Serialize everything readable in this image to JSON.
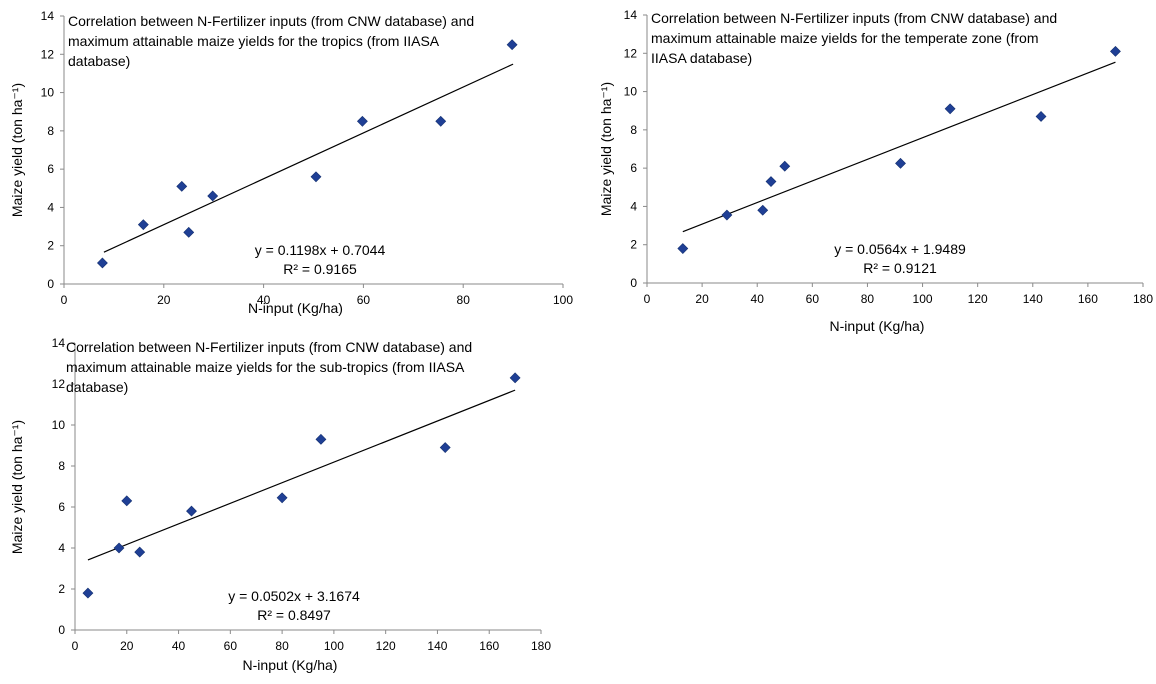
{
  "chart_data": [
    {
      "type": "scatter",
      "title_lines": [
        "Correlation between N-Fertilizer inputs (from CNW database) and",
        "maximum attainable maize yields for the tropics (from IIASA",
        "database)"
      ],
      "xlabel": "N-input (Kg/ha)",
      "ylabel": "Maize yield (ton ha⁻¹)",
      "xlim": [
        0,
        100
      ],
      "ylim": [
        0,
        14
      ],
      "xticks": [
        0,
        20,
        40,
        60,
        80,
        100
      ],
      "yticks": [
        0,
        2,
        4,
        6,
        8,
        10,
        12,
        14
      ],
      "grid": false,
      "marker_color": "#1F3F95",
      "trendline": {
        "slope": 0.1198,
        "intercept": 0.7044,
        "x_range": [
          8,
          90
        ]
      },
      "equation": "y = 0.1198x + 0.7044",
      "r2": "R² = 0.9165",
      "points": [
        {
          "x": 7.7,
          "y": 1.1
        },
        {
          "x": 15.9,
          "y": 3.1
        },
        {
          "x": 23.6,
          "y": 5.1
        },
        {
          "x": 25.0,
          "y": 2.7
        },
        {
          "x": 29.8,
          "y": 4.6
        },
        {
          "x": 50.5,
          "y": 5.6
        },
        {
          "x": 59.8,
          "y": 8.5
        },
        {
          "x": 75.5,
          "y": 8.5
        },
        {
          "x": 89.8,
          "y": 12.5
        }
      ]
    },
    {
      "type": "scatter",
      "title_lines": [
        "Correlation between N-Fertilizer inputs (from CNW database) and",
        "maximum attainable maize yields for the temperate zone (from",
        "IIASA database)"
      ],
      "xlabel": "N-input (Kg/ha)",
      "ylabel": "Maize yield (ton ha⁻¹)",
      "xlim": [
        0,
        180
      ],
      "ylim": [
        0,
        14
      ],
      "xticks": [
        0,
        20,
        40,
        60,
        80,
        100,
        120,
        140,
        160,
        180
      ],
      "yticks": [
        0,
        2,
        4,
        6,
        8,
        10,
        12,
        14
      ],
      "grid": false,
      "marker_color": "#1F3F95",
      "trendline": {
        "slope": 0.0564,
        "intercept": 1.9489,
        "x_range": [
          13,
          170
        ]
      },
      "equation": "y = 0.0564x + 1.9489",
      "r2": "R² = 0.9121",
      "points": [
        {
          "x": 13,
          "y": 1.8
        },
        {
          "x": 29,
          "y": 3.55
        },
        {
          "x": 42,
          "y": 3.8
        },
        {
          "x": 45,
          "y": 5.3
        },
        {
          "x": 50,
          "y": 6.1
        },
        {
          "x": 92,
          "y": 6.25
        },
        {
          "x": 110,
          "y": 9.1
        },
        {
          "x": 143,
          "y": 8.7
        },
        {
          "x": 170,
          "y": 12.1
        }
      ]
    },
    {
      "type": "scatter",
      "title_lines": [
        "Correlation between N-Fertilizer inputs (from CNW database) and",
        "maximum attainable maize yields for the sub-tropics (from IIASA",
        "database)"
      ],
      "xlabel": "N-input (Kg/ha)",
      "ylabel": "Maize yield (ton ha⁻¹)",
      "xlim": [
        0,
        180
      ],
      "ylim": [
        0,
        14
      ],
      "xticks": [
        0,
        20,
        40,
        60,
        80,
        100,
        120,
        140,
        160,
        180
      ],
      "yticks": [
        0,
        2,
        4,
        6,
        8,
        10,
        12,
        14
      ],
      "grid": false,
      "marker_color": "#1F3F95",
      "trendline": {
        "slope": 0.0502,
        "intercept": 3.1674,
        "x_range": [
          5,
          170
        ]
      },
      "equation": "y = 0.0502x + 3.1674",
      "r2": "R² = 0.8497",
      "points": [
        {
          "x": 5,
          "y": 1.8
        },
        {
          "x": 17,
          "y": 4.0
        },
        {
          "x": 20,
          "y": 6.3
        },
        {
          "x": 25,
          "y": 3.8
        },
        {
          "x": 45,
          "y": 5.8
        },
        {
          "x": 80,
          "y": 6.45
        },
        {
          "x": 95,
          "y": 9.3
        },
        {
          "x": 143,
          "y": 8.9
        },
        {
          "x": 170,
          "y": 12.3
        }
      ]
    }
  ]
}
